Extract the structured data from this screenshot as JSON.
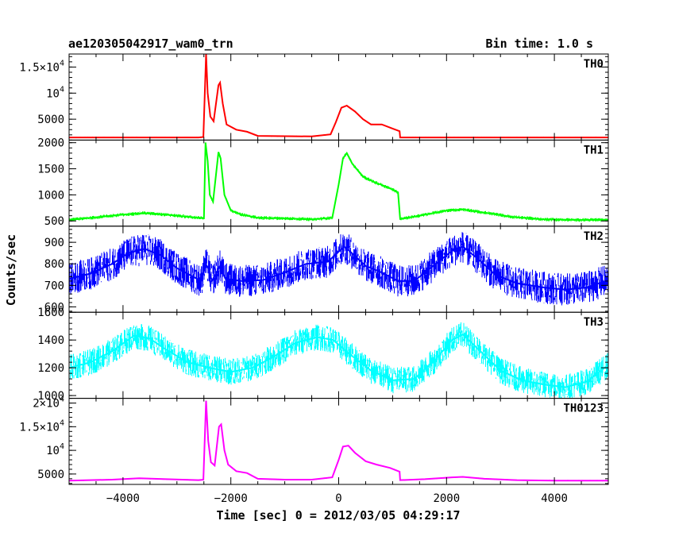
{
  "header": {
    "left": "ae120305042917_wam0_trn",
    "right": "Bin time: 1.0 s"
  },
  "chart_data": {
    "type": "line",
    "xlabel": "Time [sec] 0 = 2012/03/05 04:29:17",
    "ylabel": "Counts/sec",
    "xlim": [
      -5000,
      5000
    ],
    "x_ticks": [
      -4000,
      -2000,
      0,
      2000,
      4000
    ],
    "x_tick_labels": [
      "−4000",
      "−2000",
      "0",
      "2000",
      "4000"
    ],
    "panels": [
      {
        "name": "TH0",
        "color": "#ff0000",
        "ylim": [
          1000,
          17500
        ],
        "y_ticks": [
          5000,
          10000,
          15000
        ],
        "y_tick_labels": [
          {
            "main": "5000",
            "sup": ""
          },
          {
            "main": "10",
            "sup": "4"
          },
          {
            "main": "1.5×10",
            "sup": "4"
          }
        ],
        "noise": 120,
        "points": [
          [
            -5000,
            1500
          ],
          [
            -2600,
            1500
          ],
          [
            -2510,
            1600
          ],
          [
            -2460,
            17500
          ],
          [
            -2430,
            10000
          ],
          [
            -2380,
            5500
          ],
          [
            -2320,
            4600
          ],
          [
            -2230,
            11500
          ],
          [
            -2200,
            12000
          ],
          [
            -2150,
            8000
          ],
          [
            -2080,
            4000
          ],
          [
            -1900,
            3000
          ],
          [
            -1700,
            2600
          ],
          [
            -1500,
            1800
          ],
          [
            -500,
            1700
          ],
          [
            -150,
            2100
          ],
          [
            -50,
            4500
          ],
          [
            50,
            7200
          ],
          [
            150,
            7600
          ],
          [
            300,
            6500
          ],
          [
            450,
            5000
          ],
          [
            600,
            4000
          ],
          [
            800,
            4000
          ],
          [
            1000,
            3200
          ],
          [
            1130,
            2700
          ],
          [
            1140,
            1500
          ],
          [
            5000,
            1500
          ]
        ]
      },
      {
        "name": "TH1",
        "color": "#00ff00",
        "ylim": [
          400,
          2050
        ],
        "y_ticks": [
          500,
          1000,
          1500,
          2000
        ],
        "y_tick_labels": [
          {
            "main": "500",
            "sup": ""
          },
          {
            "main": "1000",
            "sup": ""
          },
          {
            "main": "1500",
            "sup": ""
          },
          {
            "main": "2000",
            "sup": ""
          }
        ],
        "noise": 35,
        "points": [
          [
            -5000,
            520
          ],
          [
            -4600,
            560
          ],
          [
            -4000,
            620
          ],
          [
            -3600,
            650
          ],
          [
            -3200,
            620
          ],
          [
            -2800,
            580
          ],
          [
            -2500,
            550
          ],
          [
            -2470,
            2000
          ],
          [
            -2430,
            1650
          ],
          [
            -2390,
            1000
          ],
          [
            -2330,
            870
          ],
          [
            -2230,
            1820
          ],
          [
            -2190,
            1700
          ],
          [
            -2120,
            1000
          ],
          [
            -2000,
            700
          ],
          [
            -1800,
            620
          ],
          [
            -1500,
            560
          ],
          [
            -1000,
            550
          ],
          [
            -500,
            530
          ],
          [
            -120,
            560
          ],
          [
            0,
            1200
          ],
          [
            80,
            1700
          ],
          [
            150,
            1800
          ],
          [
            250,
            1600
          ],
          [
            450,
            1350
          ],
          [
            650,
            1250
          ],
          [
            900,
            1150
          ],
          [
            1100,
            1050
          ],
          [
            1140,
            540
          ],
          [
            1500,
            600
          ],
          [
            2000,
            700
          ],
          [
            2300,
            720
          ],
          [
            2700,
            660
          ],
          [
            3200,
            580
          ],
          [
            3800,
            530
          ],
          [
            4400,
            520
          ],
          [
            5000,
            520
          ]
        ]
      },
      {
        "name": "TH2",
        "color": "#0000ff",
        "ylim": [
          575,
          975
        ],
        "y_ticks": [
          600,
          700,
          800,
          900
        ],
        "y_tick_labels": [
          {
            "main": "600",
            "sup": ""
          },
          {
            "main": "700",
            "sup": ""
          },
          {
            "main": "800",
            "sup": ""
          },
          {
            "main": "900",
            "sup": ""
          }
        ],
        "noise": 75,
        "points": [
          [
            -5000,
            730
          ],
          [
            -4600,
            755
          ],
          [
            -4200,
            800
          ],
          [
            -3900,
            850
          ],
          [
            -3600,
            870
          ],
          [
            -3300,
            840
          ],
          [
            -3000,
            780
          ],
          [
            -2700,
            740
          ],
          [
            -2550,
            720
          ],
          [
            -2470,
            800
          ],
          [
            -2420,
            780
          ],
          [
            -2350,
            720
          ],
          [
            -2200,
            790
          ],
          [
            -2100,
            730
          ],
          [
            -1800,
            720
          ],
          [
            -1400,
            725
          ],
          [
            -1000,
            760
          ],
          [
            -600,
            800
          ],
          [
            -200,
            810
          ],
          [
            100,
            880
          ],
          [
            200,
            860
          ],
          [
            500,
            790
          ],
          [
            800,
            760
          ],
          [
            1100,
            720
          ],
          [
            1400,
            720
          ],
          [
            1800,
            800
          ],
          [
            2100,
            860
          ],
          [
            2300,
            880
          ],
          [
            2600,
            820
          ],
          [
            2900,
            750
          ],
          [
            3300,
            710
          ],
          [
            3800,
            690
          ],
          [
            4200,
            680
          ],
          [
            4600,
            690
          ],
          [
            5000,
            725
          ]
        ]
      },
      {
        "name": "TH3",
        "color": "#00ffff",
        "ylim": [
          980,
          1600
        ],
        "y_ticks": [
          1000,
          1200,
          1400,
          1600
        ],
        "y_tick_labels": [
          {
            "main": "1000",
            "sup": ""
          },
          {
            "main": "1200",
            "sup": ""
          },
          {
            "main": "1400",
            "sup": ""
          },
          {
            "main": "1600",
            "sup": ""
          }
        ],
        "noise": 95,
        "points": [
          [
            -5000,
            1200
          ],
          [
            -4600,
            1240
          ],
          [
            -4200,
            1320
          ],
          [
            -3800,
            1430
          ],
          [
            -3500,
            1410
          ],
          [
            -3200,
            1330
          ],
          [
            -2800,
            1240
          ],
          [
            -2400,
            1200
          ],
          [
            -2000,
            1170
          ],
          [
            -1600,
            1200
          ],
          [
            -1200,
            1280
          ],
          [
            -800,
            1380
          ],
          [
            -400,
            1420
          ],
          [
            -100,
            1400
          ],
          [
            200,
            1300
          ],
          [
            600,
            1180
          ],
          [
            1000,
            1110
          ],
          [
            1400,
            1120
          ],
          [
            1800,
            1260
          ],
          [
            2100,
            1400
          ],
          [
            2300,
            1440
          ],
          [
            2600,
            1330
          ],
          [
            3000,
            1180
          ],
          [
            3400,
            1110
          ],
          [
            3800,
            1080
          ],
          [
            4200,
            1060
          ],
          [
            4600,
            1100
          ],
          [
            5000,
            1220
          ]
        ]
      },
      {
        "name": "TH0123",
        "color": "#ff00ff",
        "ylim": [
          2800,
          21000
        ],
        "y_ticks": [
          5000,
          10000,
          15000,
          20000
        ],
        "y_tick_labels": [
          {
            "main": "5000",
            "sup": ""
          },
          {
            "main": "10",
            "sup": "4"
          },
          {
            "main": "1.5×10",
            "sup": "4"
          },
          {
            "main": "2×10",
            "sup": "4"
          }
        ],
        "noise": 140,
        "points": [
          [
            -5000,
            3600
          ],
          [
            -4200,
            3800
          ],
          [
            -3700,
            4100
          ],
          [
            -3200,
            3900
          ],
          [
            -2600,
            3700
          ],
          [
            -2510,
            3800
          ],
          [
            -2460,
            20500
          ],
          [
            -2420,
            12000
          ],
          [
            -2370,
            7500
          ],
          [
            -2300,
            6800
          ],
          [
            -2220,
            15000
          ],
          [
            -2180,
            15500
          ],
          [
            -2120,
            10000
          ],
          [
            -2050,
            7000
          ],
          [
            -1900,
            5600
          ],
          [
            -1700,
            5200
          ],
          [
            -1500,
            4000
          ],
          [
            -1000,
            3800
          ],
          [
            -500,
            3800
          ],
          [
            -120,
            4300
          ],
          [
            0,
            8000
          ],
          [
            80,
            10800
          ],
          [
            180,
            11000
          ],
          [
            300,
            9500
          ],
          [
            500,
            7700
          ],
          [
            700,
            7000
          ],
          [
            950,
            6300
          ],
          [
            1130,
            5500
          ],
          [
            1140,
            3700
          ],
          [
            1600,
            3900
          ],
          [
            2100,
            4300
          ],
          [
            2300,
            4400
          ],
          [
            2700,
            4000
          ],
          [
            3300,
            3700
          ],
          [
            4000,
            3600
          ],
          [
            5000,
            3600
          ]
        ]
      }
    ]
  }
}
